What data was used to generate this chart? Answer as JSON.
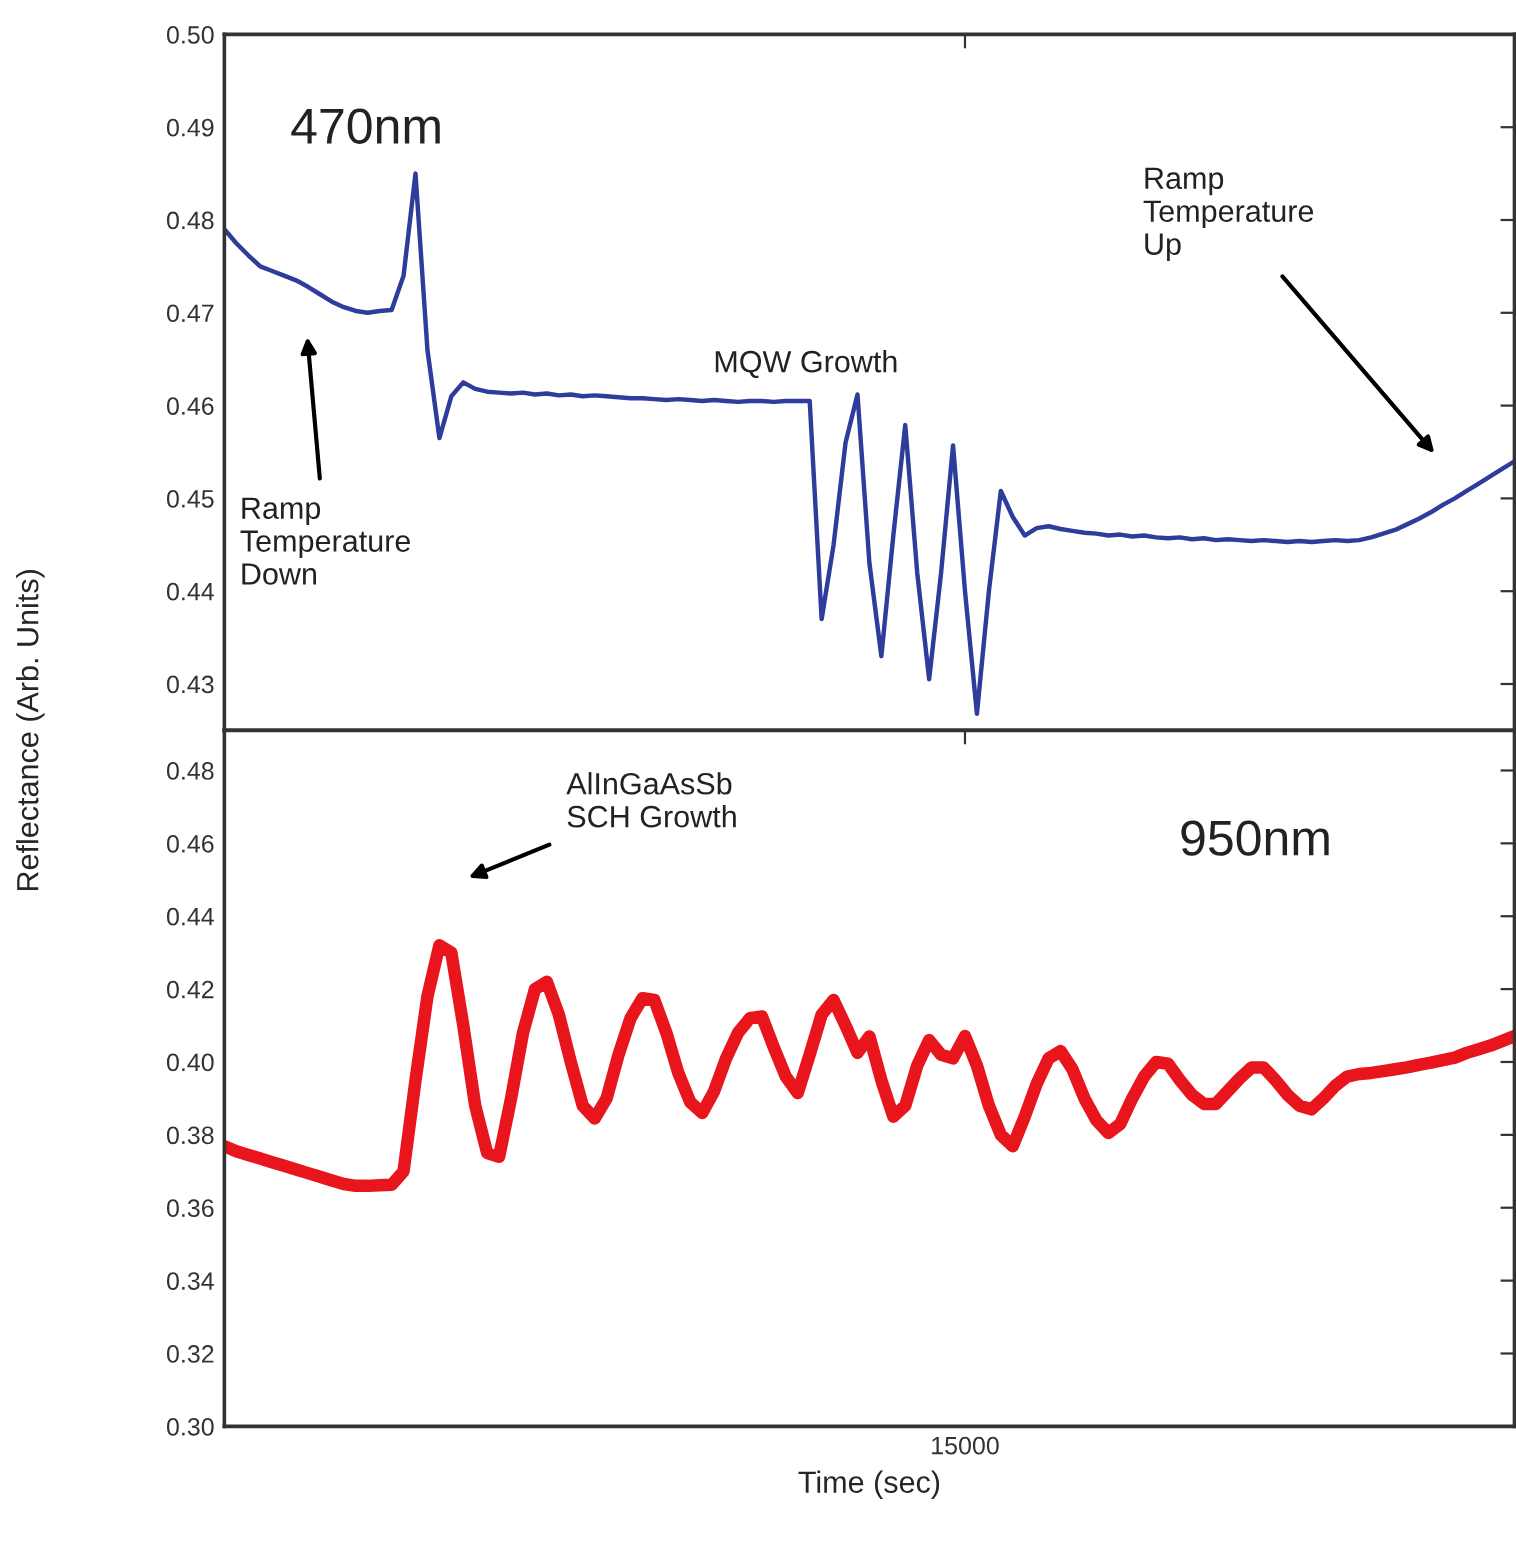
{
  "chart_data": [
    {
      "type": "line",
      "ylabel": "Reflectance (Arb. Units)",
      "categories": [
        null,
        null,
        null,
        null,
        null,
        null,
        null,
        null,
        null,
        null,
        null,
        null,
        null,
        null,
        null,
        null,
        null,
        null,
        null,
        null,
        null,
        null,
        null,
        null,
        null,
        null,
        null,
        null,
        null,
        null,
        null,
        null,
        null,
        null,
        null,
        null,
        null,
        null,
        null,
        null,
        null,
        null,
        null,
        null,
        null,
        null,
        null,
        null,
        null,
        null,
        null,
        null,
        null,
        null,
        null,
        null,
        null,
        null,
        null,
        null,
        null,
        null,
        null,
        null,
        null,
        null,
        null,
        null,
        null,
        null,
        null,
        null,
        null,
        null,
        null,
        null,
        null,
        null,
        null,
        null,
        null,
        null,
        null,
        null,
        null,
        null,
        null,
        null,
        null,
        null,
        null,
        null,
        null,
        null,
        null,
        null,
        null,
        null,
        null,
        null,
        null,
        null,
        null,
        null,
        null,
        null,
        null,
        null,
        null
      ],
      "series": [
        {
          "color": "#2e3d9c",
          "values": [
            0.479,
            0.4775,
            0.4762,
            0.475,
            0.4745,
            0.474,
            0.4735,
            0.4728,
            0.472,
            0.4712,
            0.4706,
            0.4702,
            0.47,
            0.4702,
            0.4703,
            0.474,
            0.485,
            0.466,
            0.4565,
            0.461,
            0.4625,
            0.4618,
            0.4615,
            0.4614,
            0.4613,
            0.4614,
            0.4612,
            0.4613,
            0.4611,
            0.4612,
            0.461,
            0.4611,
            0.461,
            0.4609,
            0.4608,
            0.4608,
            0.4607,
            0.4606,
            0.4607,
            0.4606,
            0.4605,
            0.4606,
            0.4605,
            0.4604,
            0.4605,
            0.4605,
            0.4604,
            0.4605,
            0.4605,
            0.4605,
            0.437,
            0.445,
            0.456,
            0.4612,
            0.443,
            0.433,
            0.446,
            0.4579,
            0.442,
            0.4305,
            0.442,
            0.4557,
            0.44,
            0.4268,
            0.44,
            0.4508,
            0.448,
            0.446,
            0.4468,
            0.447,
            0.4467,
            0.4465,
            0.4463,
            0.4462,
            0.446,
            0.4461,
            0.4459,
            0.446,
            0.4458,
            0.4457,
            0.4458,
            0.4456,
            0.4457,
            0.4455,
            0.4456,
            0.4455,
            0.4454,
            0.4455,
            0.4454,
            0.4453,
            0.4454,
            0.4453,
            0.4454,
            0.4455,
            0.4454,
            0.4455,
            0.4458,
            0.4462,
            0.4466,
            0.4472,
            0.4478,
            0.4485,
            0.4493,
            0.45,
            0.4508,
            0.4516,
            0.4524,
            0.4532,
            0.454
          ]
        }
      ],
      "ylim": [
        0.425,
        0.5
      ],
      "yticks": [
        0.43,
        0.44,
        0.45,
        0.46,
        0.47,
        0.48,
        0.49,
        {
          "value": 0.5,
          "label": "0.50"
        }
      ],
      "tick_labels": "y",
      "annotations": [
        "470nm",
        "MQW Growth",
        "Ramp\nTemperature\nUp",
        "Ramp\nTemperature\nDown"
      ]
    },
    {
      "type": "line",
      "xlabel": "Time (sec)",
      "categories": [
        null,
        null,
        null,
        null,
        null,
        null,
        null,
        null,
        null,
        null,
        null,
        null,
        null,
        null,
        null,
        null,
        null,
        null,
        null,
        null,
        null,
        null,
        null,
        null,
        null,
        null,
        null,
        null,
        null,
        null,
        null,
        null,
        null,
        null,
        null,
        null,
        null,
        null,
        null,
        null,
        null,
        null,
        null,
        null,
        null,
        null,
        null,
        null,
        null,
        null,
        null,
        null,
        null,
        null,
        null,
        null,
        null,
        null,
        null,
        null,
        null,
        null,
        "15000",
        null,
        null,
        null,
        null,
        null,
        null,
        null,
        null,
        null,
        null,
        null,
        null,
        null,
        null,
        null,
        null,
        null,
        null,
        null,
        null,
        null,
        null,
        null,
        null,
        null,
        null,
        null,
        null,
        null,
        null,
        null,
        null,
        null,
        null,
        null,
        null,
        null,
        null,
        null,
        null,
        null,
        null,
        null,
        null,
        null,
        null
      ],
      "series": [
        {
          "color": "#e8151d",
          "values": [
            0.3769,
            0.3755,
            0.3745,
            0.3735,
            0.3725,
            0.3715,
            0.3705,
            0.3695,
            0.3685,
            0.3675,
            0.3665,
            0.366,
            0.366,
            0.3662,
            0.3663,
            0.37,
            0.395,
            0.418,
            0.432,
            0.43,
            0.41,
            0.388,
            0.375,
            0.374,
            0.39,
            0.408,
            0.42,
            0.422,
            0.413,
            0.4,
            0.388,
            0.3845,
            0.39,
            0.402,
            0.412,
            0.4175,
            0.417,
            0.408,
            0.397,
            0.389,
            0.386,
            0.392,
            0.401,
            0.408,
            0.412,
            0.4125,
            0.404,
            0.396,
            0.3915,
            0.402,
            0.413,
            0.417,
            0.41,
            0.4025,
            0.407,
            0.395,
            0.385,
            0.388,
            0.399,
            0.406,
            0.402,
            0.401,
            0.4071,
            0.399,
            0.388,
            0.38,
            0.3769,
            0.385,
            0.394,
            0.401,
            0.403,
            0.398,
            0.39,
            0.384,
            0.3805,
            0.383,
            0.39,
            0.396,
            0.4,
            0.3995,
            0.395,
            0.391,
            0.3885,
            0.3885,
            0.392,
            0.3955,
            0.3985,
            0.3985,
            0.395,
            0.391,
            0.388,
            0.387,
            0.39,
            0.3935,
            0.396,
            0.3967,
            0.397,
            0.3975,
            0.398,
            0.3985,
            0.3992,
            0.3998,
            0.4005,
            0.4012,
            0.4025,
            0.4035,
            0.4045,
            0.4058,
            0.4071
          ]
        }
      ],
      "ylim": [
        0.3,
        0.491
      ],
      "yticks": [
        {
          "value": 0.3,
          "label": "0.30"
        },
        0.32,
        0.34,
        0.36,
        0.38,
        {
          "value": 0.4,
          "label": "0.40"
        },
        0.42,
        0.44,
        0.46,
        0.48
      ],
      "annotations": [
        "AlInGaAsSb\nSCH Growth",
        "950nm"
      ]
    }
  ]
}
